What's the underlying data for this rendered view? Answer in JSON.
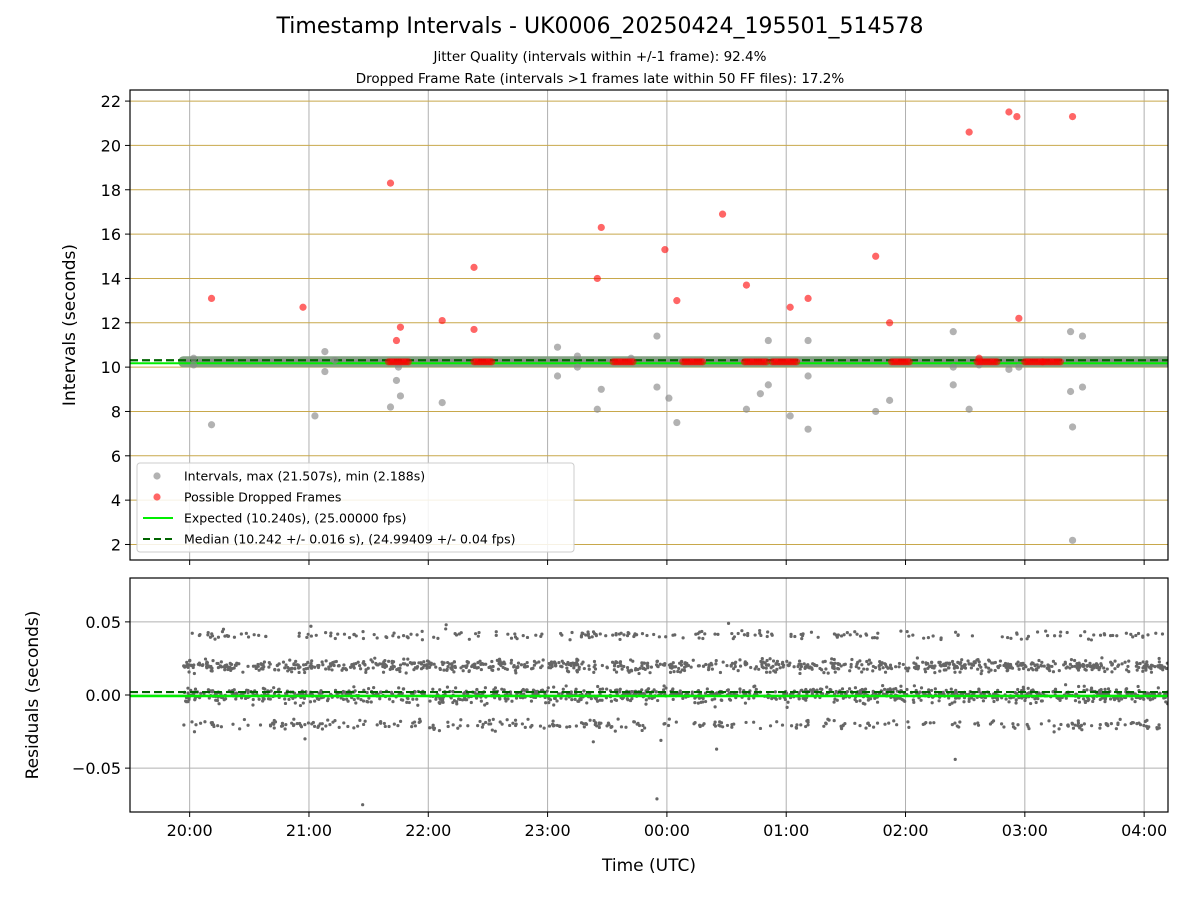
{
  "title": "Timestamp Intervals - UK0006_20250424_195501_514578",
  "subtitle_1": "Jitter Quality (intervals within +/-1 frame): 92.4%",
  "subtitle_2": "Dropped Frame Rate (intervals >1 frames late within 50 FF files): 17.2%",
  "colors": {
    "intervals": "#888888",
    "dropped": "#ff0000",
    "expected": "#00ee00",
    "median": "#006400",
    "hgrid_top": "#c8a84b",
    "grid": "#b0b0b0",
    "residuals": "#666666"
  },
  "chart_data": [
    {
      "type": "scatter",
      "ylabel": "Intervals (seconds)",
      "xlim": [
        "19:30",
        "04:12"
      ],
      "ylim": [
        1.3,
        22.5
      ],
      "yticks": [
        2,
        4,
        6,
        8,
        10,
        12,
        14,
        16,
        18,
        20,
        22
      ],
      "grid": true,
      "legend_position": "lower-left",
      "legend": [
        "Intervals, max (21.507s), min (2.188s)",
        "Possible Dropped Frames",
        "Expected (10.240s), (25.00000 fps)",
        "Median (10.242 +/- 0.016 s), (24.99409 +/- 0.04 fps)"
      ],
      "expected": 10.24,
      "median": 10.242,
      "normal_band": {
        "name": "Intervals, max (21.507s), min (2.188s)",
        "x_range": [
          "19:57",
          "04:12"
        ],
        "y": 10.24
      },
      "intervals_points": [
        [
          "20:02",
          10.4
        ],
        [
          "20:02",
          10.1
        ],
        [
          "20:11",
          7.4
        ],
        [
          "21:03",
          7.8
        ],
        [
          "21:08",
          9.8
        ],
        [
          "21:08",
          10.7
        ],
        [
          "21:13",
          10.3
        ],
        [
          "21:41",
          8.2
        ],
        [
          "21:44",
          9.4
        ],
        [
          "21:45",
          10.0
        ],
        [
          "21:46",
          8.7
        ],
        [
          "22:07",
          8.4
        ],
        [
          "23:05",
          10.9
        ],
        [
          "23:05",
          9.6
        ],
        [
          "23:15",
          10.0
        ],
        [
          "23:15",
          10.5
        ],
        [
          "23:25",
          8.1
        ],
        [
          "23:27",
          9.0
        ],
        [
          "23:42",
          10.4
        ],
        [
          "23:55",
          9.1
        ],
        [
          "23:55",
          11.4
        ],
        [
          "00:01",
          8.6
        ],
        [
          "00:05",
          7.5
        ],
        [
          "00:40",
          8.1
        ],
        [
          "00:47",
          8.8
        ],
        [
          "00:51",
          11.2
        ],
        [
          "00:51",
          9.2
        ],
        [
          "01:02",
          7.8
        ],
        [
          "01:11",
          11.2
        ],
        [
          "01:11",
          9.6
        ],
        [
          "01:11",
          7.2
        ],
        [
          "01:45",
          8.0
        ],
        [
          "01:52",
          8.5
        ],
        [
          "02:24",
          11.6
        ],
        [
          "02:24",
          10.0
        ],
        [
          "02:24",
          9.2
        ],
        [
          "02:32",
          8.1
        ],
        [
          "02:37",
          10.1
        ],
        [
          "02:52",
          9.9
        ],
        [
          "02:57",
          10.0
        ],
        [
          "03:23",
          11.6
        ],
        [
          "03:23",
          8.9
        ],
        [
          "03:24",
          7.3
        ],
        [
          "03:24",
          2.188
        ],
        [
          "03:29",
          11.4
        ],
        [
          "03:29",
          9.1
        ]
      ],
      "dropped_points": [
        [
          "20:11",
          13.1
        ],
        [
          "20:57",
          12.7
        ],
        [
          "21:41",
          18.3
        ],
        [
          "21:44",
          11.2
        ],
        [
          "21:46",
          11.8
        ],
        [
          "22:07",
          12.1
        ],
        [
          "22:23",
          14.5
        ],
        [
          "22:23",
          11.7
        ],
        [
          "23:25",
          14.0
        ],
        [
          "23:27",
          16.3
        ],
        [
          "23:59",
          15.3
        ],
        [
          "00:05",
          13.0
        ],
        [
          "00:28",
          16.9
        ],
        [
          "00:40",
          13.7
        ],
        [
          "01:02",
          12.7
        ],
        [
          "01:11",
          13.1
        ],
        [
          "01:45",
          15.0
        ],
        [
          "01:52",
          12.0
        ],
        [
          "02:32",
          20.6
        ],
        [
          "02:37",
          10.4
        ],
        [
          "02:52",
          21.507
        ],
        [
          "02:56",
          21.3
        ],
        [
          "02:57",
          12.2
        ],
        [
          "03:24",
          21.3
        ]
      ],
      "dropped_clusters": [
        {
          "name": "Possible Dropped Frames",
          "x_range": [
            "21:40",
            "21:50"
          ],
          "y": 10.24
        },
        {
          "name": "Possible Dropped Frames",
          "x_range": [
            "22:23",
            "22:32"
          ],
          "y": 10.24
        },
        {
          "name": "Possible Dropped Frames",
          "x_range": [
            "23:33",
            "23:44"
          ],
          "y": 10.24
        },
        {
          "name": "Possible Dropped Frames",
          "x_range": [
            "00:08",
            "00:18"
          ],
          "y": 10.24
        },
        {
          "name": "Possible Dropped Frames",
          "x_range": [
            "00:39",
            "00:51"
          ],
          "y": 10.24
        },
        {
          "name": "Possible Dropped Frames",
          "x_range": [
            "00:53",
            "01:06"
          ],
          "y": 10.24
        },
        {
          "name": "Possible Dropped Frames",
          "x_range": [
            "01:53",
            "02:02"
          ],
          "y": 10.24
        },
        {
          "name": "Possible Dropped Frames",
          "x_range": [
            "02:36",
            "02:46"
          ],
          "y": 10.24
        },
        {
          "name": "Possible Dropped Frames",
          "x_range": [
            "03:00",
            "03:09"
          ],
          "y": 10.24
        },
        {
          "name": "Possible Dropped Frames",
          "x_range": [
            "03:09",
            "03:18"
          ],
          "y": 10.24
        }
      ]
    },
    {
      "type": "scatter",
      "xlabel": "Time (UTC)",
      "ylabel": "Residuals (seconds)",
      "xlim": [
        "19:30",
        "04:12"
      ],
      "ylim": [
        -0.08,
        0.08
      ],
      "yticks": [
        -0.05,
        0.0,
        0.05
      ],
      "yticklabels": [
        "−0.05",
        "0.00",
        "0.05"
      ],
      "xticks": [
        "20:00",
        "21:00",
        "22:00",
        "23:00",
        "00:00",
        "01:00",
        "02:00",
        "03:00",
        "04:00"
      ],
      "grid": true,
      "expected": 0.0,
      "median": 0.002,
      "residual_bands": [
        {
          "center": 0.0,
          "spread": 0.0045
        },
        {
          "center": 0.02,
          "spread": 0.0035
        },
        {
          "center": 0.041,
          "spread": 0.0025
        },
        {
          "center": -0.02,
          "spread": 0.003
        }
      ],
      "residual_outliers": [
        [
          "21:27",
          -0.075
        ],
        [
          "23:55",
          -0.071
        ],
        [
          "00:25",
          -0.037
        ],
        [
          "02:25",
          -0.044
        ],
        [
          "20:17",
          0.045
        ],
        [
          "21:01",
          0.047
        ],
        [
          "22:09",
          0.048
        ],
        [
          "00:31",
          0.049
        ],
        [
          "23:23",
          -0.032
        ],
        [
          "23:57",
          -0.031
        ],
        [
          "20:58",
          -0.03
        ]
      ]
    }
  ]
}
